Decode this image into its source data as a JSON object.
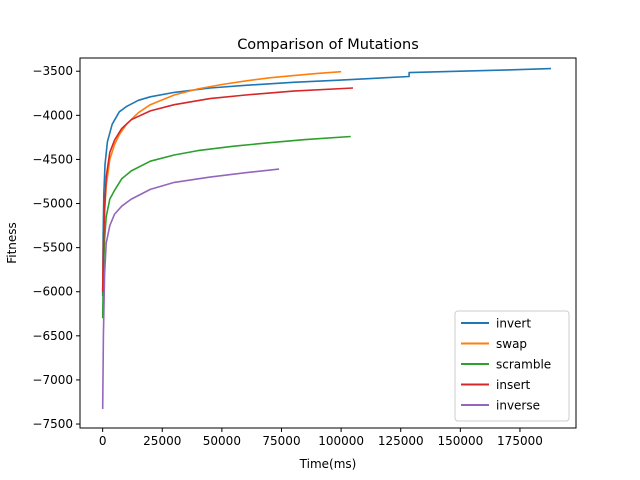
{
  "chart_data": {
    "type": "line",
    "title": "Comparison of Mutations",
    "xlabel": "Time(ms)",
    "ylabel": "Fitness",
    "xlim": [
      -9500,
      198500
    ],
    "ylim": [
      -7545,
      -3350
    ],
    "x_ticks": [
      0,
      25000,
      50000,
      75000,
      100000,
      125000,
      150000,
      175000
    ],
    "y_ticks": [
      -7500,
      -7000,
      -6500,
      -6000,
      -5500,
      -5000,
      -4500,
      -4000,
      -3500
    ],
    "grid": false,
    "legend_position": "lower-right",
    "series": [
      {
        "name": "invert",
        "color": "#1f77b4",
        "points": [
          [
            0,
            -6050
          ],
          [
            200,
            -5400
          ],
          [
            500,
            -4900
          ],
          [
            1000,
            -4560
          ],
          [
            2000,
            -4300
          ],
          [
            4000,
            -4100
          ],
          [
            7000,
            -3960
          ],
          [
            10000,
            -3900
          ],
          [
            15000,
            -3830
          ],
          [
            20000,
            -3790
          ],
          [
            30000,
            -3740
          ],
          [
            45000,
            -3690
          ],
          [
            60000,
            -3660
          ],
          [
            80000,
            -3625
          ],
          [
            100000,
            -3600
          ],
          [
            128500,
            -3560
          ],
          [
            128500,
            -3515
          ],
          [
            150000,
            -3500
          ],
          [
            170000,
            -3485
          ],
          [
            188000,
            -3470
          ]
        ]
      },
      {
        "name": "swap",
        "color": "#ff7f0e",
        "points": [
          [
            0,
            -6000
          ],
          [
            300,
            -5500
          ],
          [
            800,
            -5100
          ],
          [
            1500,
            -4800
          ],
          [
            3000,
            -4500
          ],
          [
            5000,
            -4330
          ],
          [
            7000,
            -4220
          ],
          [
            10000,
            -4100
          ],
          [
            15000,
            -3970
          ],
          [
            20000,
            -3880
          ],
          [
            30000,
            -3770
          ],
          [
            40000,
            -3700
          ],
          [
            50000,
            -3650
          ],
          [
            60000,
            -3610
          ],
          [
            70000,
            -3575
          ],
          [
            80000,
            -3550
          ],
          [
            90000,
            -3525
          ],
          [
            100000,
            -3505
          ]
        ]
      },
      {
        "name": "scramble",
        "color": "#2ca02c",
        "points": [
          [
            0,
            -6300
          ],
          [
            300,
            -5800
          ],
          [
            800,
            -5400
          ],
          [
            1500,
            -5150
          ],
          [
            3000,
            -4950
          ],
          [
            5000,
            -4850
          ],
          [
            8000,
            -4720
          ],
          [
            12000,
            -4630
          ],
          [
            20000,
            -4520
          ],
          [
            30000,
            -4450
          ],
          [
            40000,
            -4400
          ],
          [
            55000,
            -4350
          ],
          [
            70000,
            -4310
          ],
          [
            85000,
            -4275
          ],
          [
            104000,
            -4240
          ]
        ]
      },
      {
        "name": "insert",
        "color": "#d62728",
        "points": [
          [
            0,
            -6000
          ],
          [
            300,
            -5500
          ],
          [
            800,
            -5050
          ],
          [
            1500,
            -4700
          ],
          [
            3000,
            -4420
          ],
          [
            5000,
            -4280
          ],
          [
            8000,
            -4150
          ],
          [
            12000,
            -4050
          ],
          [
            20000,
            -3950
          ],
          [
            30000,
            -3880
          ],
          [
            45000,
            -3810
          ],
          [
            60000,
            -3770
          ],
          [
            80000,
            -3725
          ],
          [
            105000,
            -3690
          ]
        ]
      },
      {
        "name": "inverse",
        "color": "#9467bd",
        "points": [
          [
            0,
            -7330
          ],
          [
            300,
            -6500
          ],
          [
            800,
            -5800
          ],
          [
            1500,
            -5450
          ],
          [
            3000,
            -5250
          ],
          [
            5000,
            -5120
          ],
          [
            8000,
            -5030
          ],
          [
            12000,
            -4950
          ],
          [
            20000,
            -4840
          ],
          [
            30000,
            -4760
          ],
          [
            45000,
            -4700
          ],
          [
            60000,
            -4650
          ],
          [
            74000,
            -4610
          ]
        ]
      }
    ]
  }
}
